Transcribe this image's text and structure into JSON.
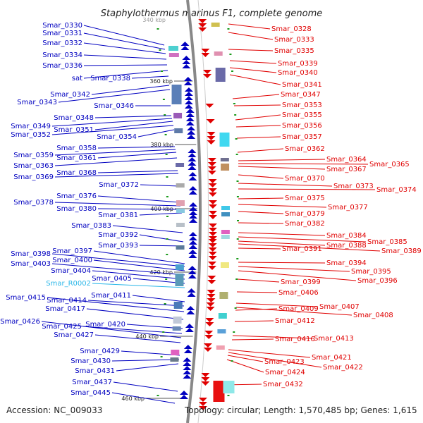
{
  "title": "Staphylothermus marinus F1, complete genome",
  "top_kbp": "340 kbp",
  "footer": {
    "accession": "Accession: NC_009033",
    "summary": "Topology: circular; Length: 1,570,485 bp; Genes: 1,615"
  },
  "colors": {
    "forward": "#e00000",
    "reverse": "#0000c0",
    "rna": "#29b6e8",
    "backbone": "#888888"
  },
  "ticks": [
    "360 kbp",
    "380 kbp",
    "400 kbp",
    "420 kbp",
    "440 kbp",
    "460 kbp"
  ],
  "left_labels": [
    {
      "text": "Smar_0330",
      "kind": "gene"
    },
    {
      "text": "Smar_0331",
      "kind": "gene"
    },
    {
      "text": "Smar_0332",
      "kind": "gene"
    },
    {
      "text": "Smar_0334",
      "kind": "gene"
    },
    {
      "text": "Smar_0336",
      "kind": "gene"
    },
    {
      "text": "sat",
      "kind": "gene"
    },
    {
      "text": "Smar_0338",
      "kind": "gene"
    },
    {
      "text": "Smar_0342",
      "kind": "gene"
    },
    {
      "text": "Smar_0343",
      "kind": "gene"
    },
    {
      "text": "Smar_0346",
      "kind": "gene"
    },
    {
      "text": "Smar_0348",
      "kind": "gene"
    },
    {
      "text": "Smar_0349",
      "kind": "gene"
    },
    {
      "text": "Smar_0351",
      "kind": "gene"
    },
    {
      "text": "Smar_0352",
      "kind": "gene"
    },
    {
      "text": "Smar_0354",
      "kind": "gene"
    },
    {
      "text": "Smar_0358",
      "kind": "gene"
    },
    {
      "text": "Smar_0359",
      "kind": "gene"
    },
    {
      "text": "Smar_0361",
      "kind": "gene"
    },
    {
      "text": "Smar_0363",
      "kind": "gene"
    },
    {
      "text": "Smar_0368",
      "kind": "gene"
    },
    {
      "text": "Smar_0369",
      "kind": "gene"
    },
    {
      "text": "Smar_0372",
      "kind": "gene"
    },
    {
      "text": "Smar_0376",
      "kind": "gene"
    },
    {
      "text": "Smar_0378",
      "kind": "gene"
    },
    {
      "text": "Smar_0380",
      "kind": "gene"
    },
    {
      "text": "Smar_0381",
      "kind": "gene"
    },
    {
      "text": "Smar_0383",
      "kind": "gene"
    },
    {
      "text": "Smar_0392",
      "kind": "gene"
    },
    {
      "text": "Smar_0393",
      "kind": "gene"
    },
    {
      "text": "Smar_0397",
      "kind": "gene"
    },
    {
      "text": "Smar_0398",
      "kind": "gene"
    },
    {
      "text": "Smar_0400",
      "kind": "gene"
    },
    {
      "text": "Smar_0403",
      "kind": "gene"
    },
    {
      "text": "Smar_0404",
      "kind": "gene"
    },
    {
      "text": "Smar_0405",
      "kind": "gene"
    },
    {
      "text": "Smar_R0002",
      "kind": "rna"
    },
    {
      "text": "Smar_0411",
      "kind": "gene"
    },
    {
      "text": "Smar_0414",
      "kind": "gene"
    },
    {
      "text": "Smar_0415",
      "kind": "gene"
    },
    {
      "text": "Smar_0417",
      "kind": "gene"
    },
    {
      "text": "Smar_0420",
      "kind": "gene"
    },
    {
      "text": "Smar_0425",
      "kind": "gene"
    },
    {
      "text": "Smar_0426",
      "kind": "gene"
    },
    {
      "text": "Smar_0427",
      "kind": "gene"
    },
    {
      "text": "Smar_0429",
      "kind": "gene"
    },
    {
      "text": "Smar_0430",
      "kind": "gene"
    },
    {
      "text": "Smar_0431",
      "kind": "gene"
    },
    {
      "text": "Smar_0437",
      "kind": "gene"
    },
    {
      "text": "Smar_0445",
      "kind": "gene"
    }
  ],
  "right_labels": [
    "Smar_0328",
    "Smar_0333",
    "Smar_0335",
    "Smar_0339",
    "Smar_0340",
    "Smar_0341",
    "Smar_0347",
    "Smar_0353",
    "Smar_0355",
    "Smar_0356",
    "Smar_0357",
    "Smar_0362",
    "Smar_0364",
    "Smar_0365",
    "Smar_0367",
    "Smar_0370",
    "Smar_0373",
    "Smar_0374",
    "Smar_0375",
    "Smar_0377",
    "Smar_0379",
    "Smar_0382",
    "Smar_0384",
    "Smar_0385",
    "Smar_0388",
    "Smar_0389",
    "Smar_0391",
    "Smar_0394",
    "Smar_0395",
    "Smar_0396",
    "Smar_0399",
    "Smar_0406",
    "Smar_0407",
    "Smar_0408",
    "Smar_0409",
    "Smar_0412",
    "Smar_0413",
    "Smar_0416",
    "Smar_0421",
    "Smar_0422",
    "Smar_0423",
    "Smar_0424",
    "Smar_0432"
  ]
}
